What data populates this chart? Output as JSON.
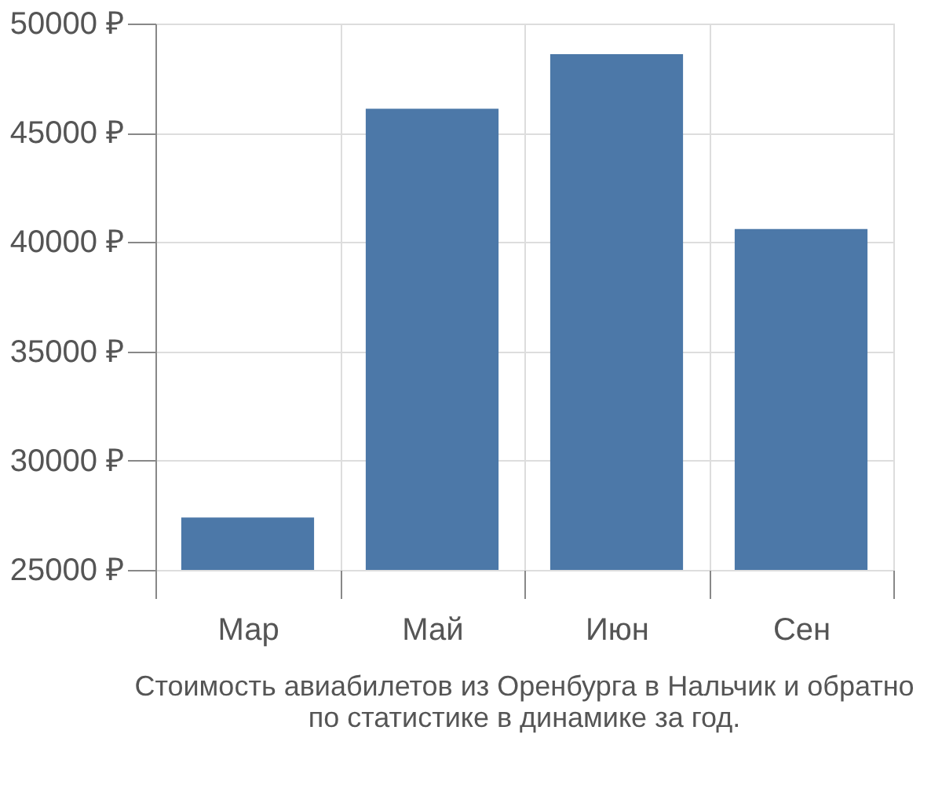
{
  "chart_data": {
    "type": "bar",
    "categories": [
      "Мар",
      "Май",
      "Июн",
      "Сен"
    ],
    "values": [
      27400,
      46100,
      48600,
      40600
    ],
    "color": "#4c78a8",
    "ylim": [
      25000,
      50000
    ],
    "yticks": [
      {
        "value": 25000,
        "label": "25000 ₽"
      },
      {
        "value": 30000,
        "label": "30000 ₽"
      },
      {
        "value": 35000,
        "label": "35000 ₽"
      },
      {
        "value": 40000,
        "label": "40000 ₽"
      },
      {
        "value": 45000,
        "label": "45000 ₽"
      },
      {
        "value": 50000,
        "label": "50000 ₽"
      }
    ],
    "grid": true,
    "annotations": [
      "Стоимость авиабилетов из Оренбурга в Нальчик и обратно",
      "по статистике в динамике за год."
    ]
  }
}
